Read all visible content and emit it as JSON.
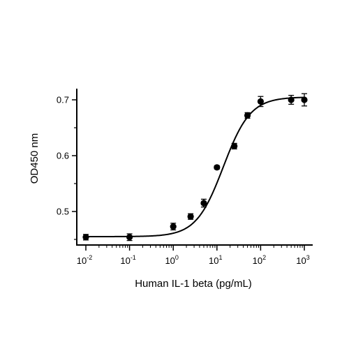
{
  "chart_data": {
    "type": "scatter",
    "title": "",
    "xlabel": "Human IL-1 beta (pg/mL)",
    "ylabel": "OD450 nm",
    "xscale": "log",
    "xlim": [
      0.01,
      1000
    ],
    "ylim": [
      0.44,
      0.72
    ],
    "grid": false,
    "legend": "none",
    "x_tick_labels": [
      {
        "base": "10",
        "exp": "-2"
      },
      {
        "base": "10",
        "exp": "-1"
      },
      {
        "base": "10",
        "exp": "0"
      },
      {
        "base": "10",
        "exp": "1"
      },
      {
        "base": "10",
        "exp": "2"
      },
      {
        "base": "10",
        "exp": "3"
      }
    ],
    "y_ticks": [
      0.5,
      0.6,
      0.7
    ],
    "y_tick_labels": [
      "0.5",
      "0.6",
      "0.7"
    ],
    "points": [
      {
        "x": 0.01,
        "y": 0.454,
        "err": 0.005
      },
      {
        "x": 0.1,
        "y": 0.454,
        "err": 0.006
      },
      {
        "x": 1,
        "y": 0.473,
        "err": 0.006
      },
      {
        "x": 2.5,
        "y": 0.491,
        "err": 0.005
      },
      {
        "x": 5,
        "y": 0.515,
        "err": 0.007
      },
      {
        "x": 10,
        "y": 0.579,
        "err": 0.003
      },
      {
        "x": 25,
        "y": 0.617,
        "err": 0.005
      },
      {
        "x": 50,
        "y": 0.672,
        "err": 0.005
      },
      {
        "x": 100,
        "y": 0.697,
        "err": 0.009
      },
      {
        "x": 500,
        "y": 0.7,
        "err": 0.008
      },
      {
        "x": 1000,
        "y": 0.7,
        "err": 0.011
      }
    ],
    "fit": {
      "model": "4PL",
      "bottom": 0.455,
      "top": 0.705,
      "ec50": 14,
      "hill": 1.4
    },
    "colors": {
      "points": "#000000",
      "line": "#000000",
      "axes": "#000000"
    }
  }
}
